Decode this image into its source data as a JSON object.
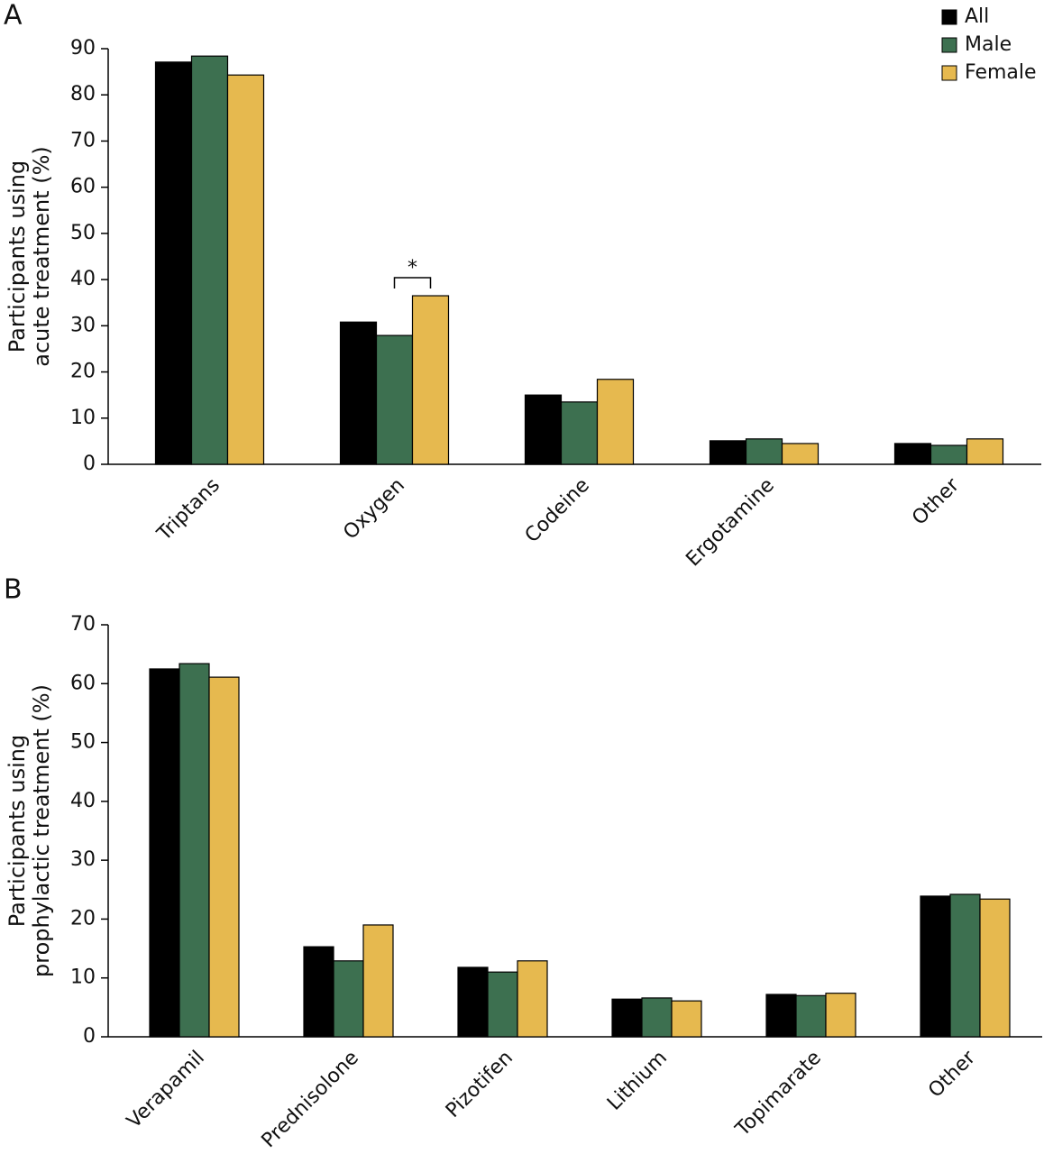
{
  "chart_data": [
    {
      "type": "bar",
      "panel_label": "A",
      "ylabel": [
        "Participants using",
        "acute treatment (%)"
      ],
      "categories": [
        "Triptans",
        "Oxygen",
        "Codeine",
        "Ergotamine",
        "Other"
      ],
      "series": [
        {
          "name": "All",
          "color": "#000000",
          "values": [
            87.1,
            30.8,
            15.0,
            5.1,
            4.5
          ]
        },
        {
          "name": "Male",
          "color": "#3d7050",
          "values": [
            88.4,
            27.9,
            13.5,
            5.5,
            4.1
          ]
        },
        {
          "name": "Female",
          "color": "#e6b94f",
          "values": [
            84.3,
            36.5,
            18.4,
            4.5,
            5.5
          ]
        }
      ],
      "ylim": [
        0,
        90
      ],
      "yticks": [
        0,
        10,
        20,
        30,
        40,
        50,
        60,
        70,
        80,
        90
      ],
      "legend": "top right",
      "annotation": {
        "text": "*",
        "category": "Oxygen",
        "between": [
          "Male",
          "Female"
        ]
      }
    },
    {
      "type": "bar",
      "panel_label": "B",
      "ylabel": [
        "Participants using",
        "prophylactic treatment (%)"
      ],
      "categories": [
        "Verapamil",
        "Prednisolone",
        "Pizotifen",
        "Lithium",
        "Topimarate",
        "Other"
      ],
      "series": [
        {
          "name": "All",
          "color": "#000000",
          "values": [
            62.5,
            15.3,
            11.8,
            6.4,
            7.2,
            23.9
          ]
        },
        {
          "name": "Male",
          "color": "#3d7050",
          "values": [
            63.4,
            12.9,
            11.0,
            6.6,
            7.0,
            24.2
          ]
        },
        {
          "name": "Female",
          "color": "#e6b94f",
          "values": [
            61.1,
            19.0,
            12.9,
            6.1,
            7.4,
            23.4
          ]
        }
      ],
      "ylim": [
        0,
        70
      ],
      "yticks": [
        0,
        10,
        20,
        30,
        40,
        50,
        60,
        70
      ]
    }
  ]
}
